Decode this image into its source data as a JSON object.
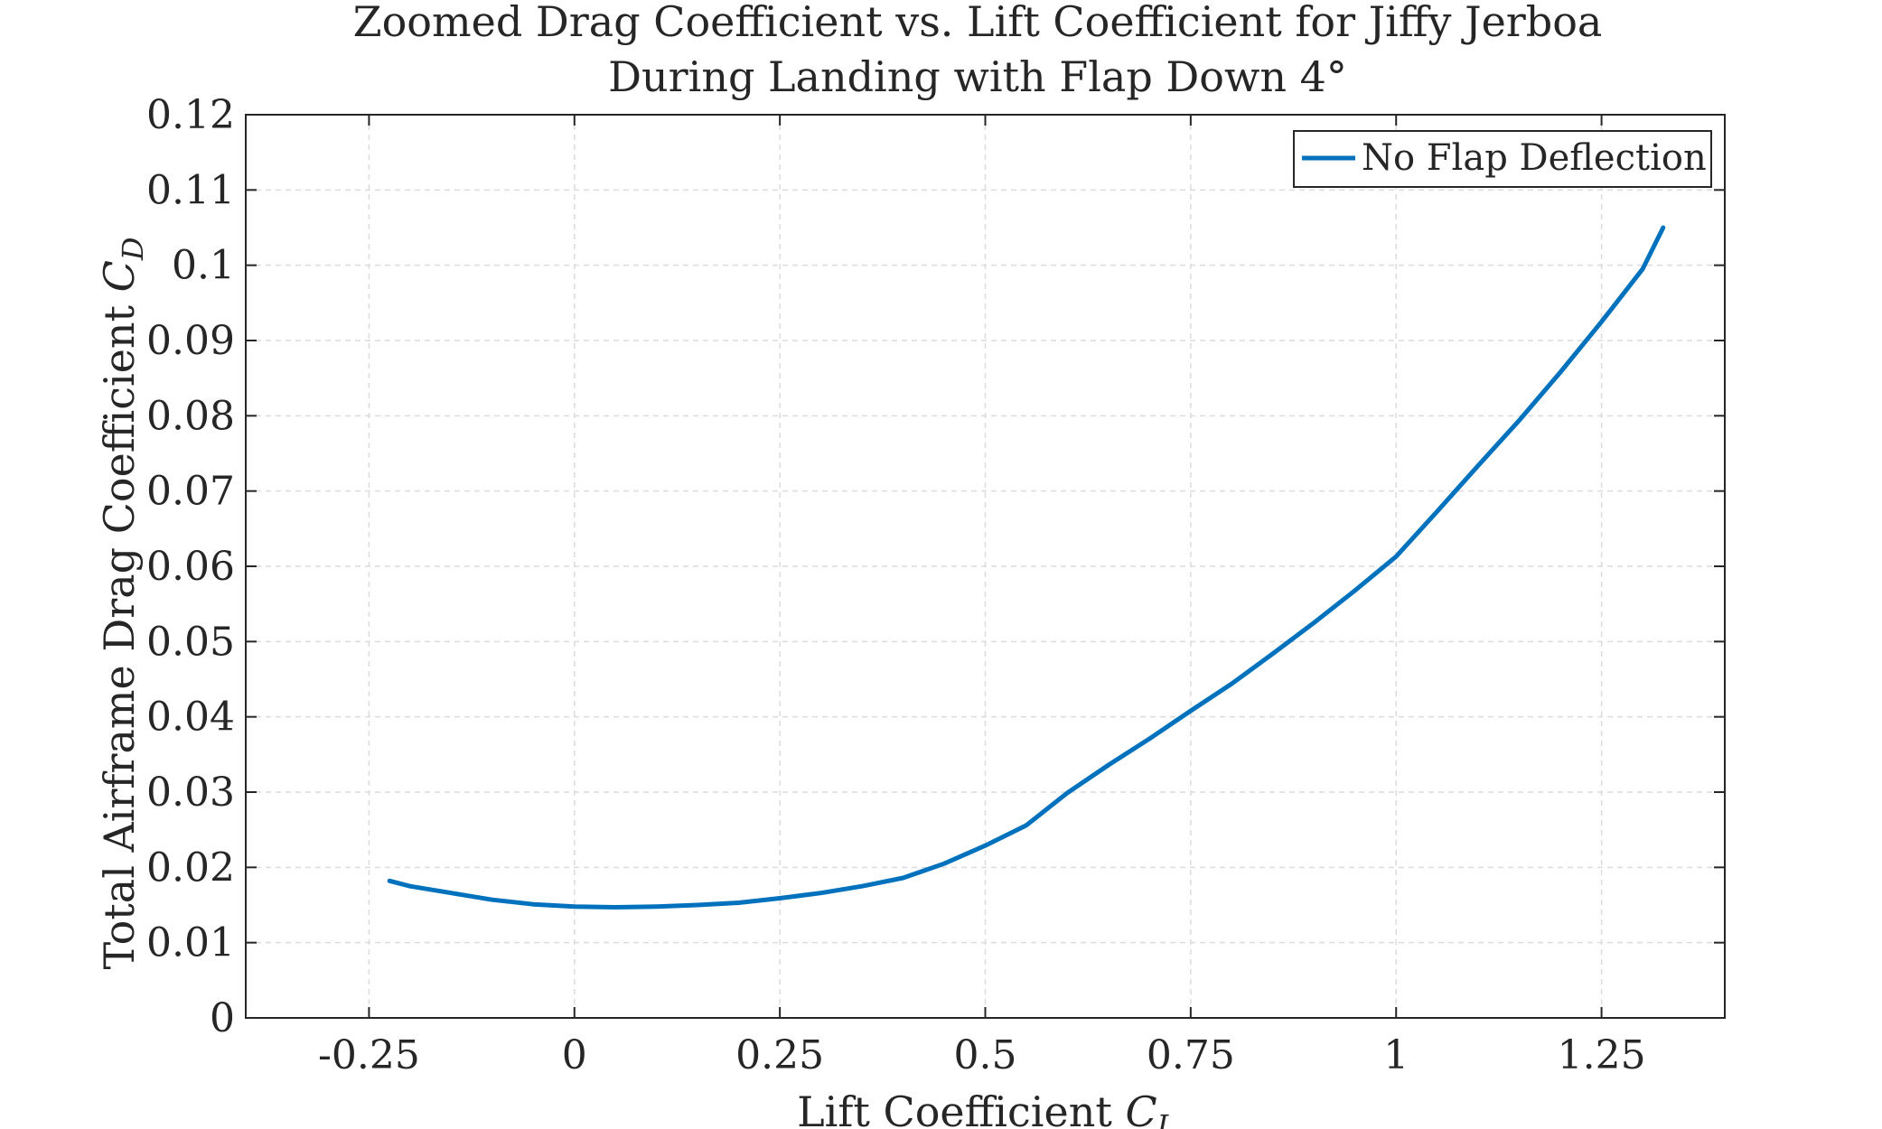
{
  "chart_data": {
    "type": "line",
    "title": [
      "Zoomed Drag Coefficient vs. Lift Coefficient for Jiffy Jerboa",
      "During Landing with Flap Down 4°"
    ],
    "xlabel": {
      "text": "Lift Coefficient ",
      "symbol": "C",
      "sub": "L"
    },
    "ylabel": {
      "text": "Total Airframe Drag Coefficient ",
      "symbol": "C",
      "sub": "D"
    },
    "xlim": [
      -0.4,
      1.4
    ],
    "ylim": [
      0,
      0.12
    ],
    "xticks": [
      -0.25,
      0,
      0.25,
      0.5,
      0.75,
      1,
      1.25
    ],
    "xtick_labels": [
      "-0.25",
      "0",
      "0.25",
      "0.5",
      "0.75",
      "1",
      "1.25"
    ],
    "yticks": [
      0,
      0.01,
      0.02,
      0.03,
      0.04,
      0.05,
      0.06,
      0.07,
      0.08,
      0.09,
      0.1,
      0.11,
      0.12
    ],
    "ytick_labels": [
      "0",
      "0.01",
      "0.02",
      "0.03",
      "0.04",
      "0.05",
      "0.06",
      "0.07",
      "0.08",
      "0.09",
      "0.1",
      "0.11",
      "0.12"
    ],
    "grid": true,
    "legend_position": "top-right",
    "series": [
      {
        "name": "No Flap Deflection",
        "color": "#0072BD",
        "x": [
          -0.225,
          -0.2,
          -0.15,
          -0.1,
          -0.05,
          0.0,
          0.05,
          0.1,
          0.15,
          0.2,
          0.25,
          0.3,
          0.35,
          0.4,
          0.45,
          0.5,
          0.55,
          0.6,
          0.65,
          0.7,
          0.75,
          0.8,
          0.85,
          0.9,
          0.95,
          1.0,
          1.05,
          1.1,
          1.15,
          1.2,
          1.25,
          1.3,
          1.325
        ],
        "y": [
          0.0182,
          0.0175,
          0.0166,
          0.0157,
          0.0151,
          0.0148,
          0.0147,
          0.0148,
          0.015,
          0.0153,
          0.0159,
          0.0166,
          0.0175,
          0.0186,
          0.0205,
          0.0229,
          0.0256,
          0.0299,
          0.0336,
          0.0371,
          0.0408,
          0.0444,
          0.0484,
          0.0525,
          0.0568,
          0.0613,
          0.0673,
          0.0734,
          0.0794,
          0.0858,
          0.0925,
          0.0995,
          0.105
        ]
      }
    ]
  }
}
